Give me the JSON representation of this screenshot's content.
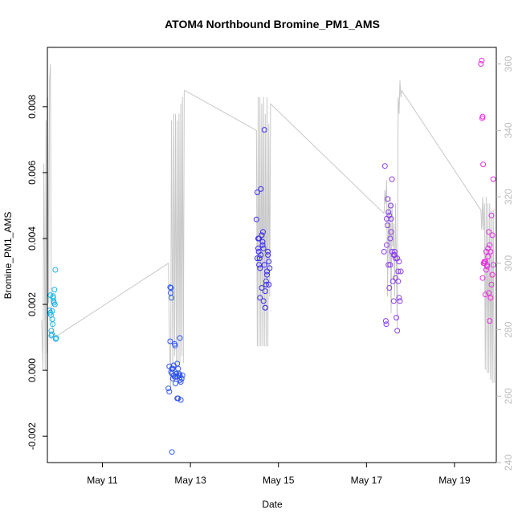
{
  "chart_data": {
    "type": "scatter",
    "title": "ATOM4 Northbound Bromine_PM1_AMS",
    "xlabel": "Date",
    "ylabel": "Bromine_PM1_AMS",
    "x_unit": "day of May",
    "xlim": [
      9.75,
      19.95
    ],
    "ylim": [
      -0.0028,
      0.0098
    ],
    "y2lim": [
      240,
      365
    ],
    "x_ticks": [
      11,
      13,
      15,
      17,
      19
    ],
    "x_tick_labels": [
      "May 11",
      "May 13",
      "May 15",
      "May 17",
      "May 19"
    ],
    "y_ticks": [
      -0.002,
      0.0,
      0.002,
      0.004,
      0.006,
      0.008
    ],
    "y_tick_labels": [
      "-0.002",
      "0.000",
      "0.002",
      "0.004",
      "0.006",
      "0.008"
    ],
    "y2_ticks": [
      240,
      260,
      280,
      300,
      320,
      340,
      360
    ],
    "y2_tick_labels": [
      "240",
      "260",
      "280",
      "300",
      "320",
      "340",
      "360"
    ],
    "colors": {
      "line": "#c8c8c8",
      "early": "#1ab4e8",
      "mid1": "#2f55f0",
      "mid2": "#3c2ef0",
      "late1": "#8a3ef0",
      "late2": "#e52ee0"
    },
    "points_series": [
      {
        "name": "group-may10",
        "color": "#1ab4e8",
        "x": [
          9.8,
          9.82,
          9.83,
          9.84,
          9.85,
          9.86,
          9.87,
          9.88,
          9.89,
          9.9,
          9.91,
          9.92,
          9.82,
          9.86,
          9.93,
          9.94,
          9.95,
          9.84,
          9.88
        ],
        "y": [
          0.00182,
          0.00228,
          0.00168,
          0.00105,
          0.0011,
          0.00155,
          0.0014,
          0.0022,
          0.0021,
          0.00205,
          0.00245,
          0.002,
          0.00175,
          0.0018,
          0.00305,
          0.00095,
          0.00098,
          0.0012,
          0.00225
        ]
      },
      {
        "name": "group-may12-13",
        "color": "#2f55f0",
        "x": [
          12.5,
          12.52,
          12.54,
          12.55,
          12.56,
          12.57,
          12.58,
          12.6,
          12.62,
          12.64,
          12.65,
          12.66,
          12.68,
          12.7,
          12.72,
          12.74,
          12.76,
          12.78,
          12.8,
          12.82,
          12.52,
          12.56,
          12.6,
          12.66,
          12.7,
          12.74,
          12.78,
          12.58,
          12.62,
          12.68,
          12.72,
          12.76,
          12.8,
          12.54,
          12.64,
          12.7,
          12.76,
          12.58
        ],
        "y": [
          -0.00055,
          -0.00065,
          0.00252,
          0.00235,
          0.0025,
          0.0022,
          -0.0001,
          5e-05,
          -0.00015,
          0.0008,
          0.00075,
          -0.0002,
          -0.0001,
          -0.0002,
          -0.00085,
          -0.0001,
          -0.00015,
          -0.00035,
          -0.00025,
          -0.00015,
          0.00012,
          -5e-05,
          -0.00025,
          -0.0004,
          0.0002,
          -0.00015,
          -0.0009,
          -0.00248,
          0.00015,
          -0.0001,
          5e-05,
          0.00098,
          -0.00025,
          0.00088,
          -0.0002,
          -0.00085,
          -0.0003,
          5e-05
        ]
      },
      {
        "name": "group-may14-15",
        "color": "#3c2ef0",
        "x": [
          14.5,
          14.52,
          14.54,
          14.55,
          14.56,
          14.57,
          14.58,
          14.6,
          14.62,
          14.64,
          14.65,
          14.66,
          14.68,
          14.7,
          14.72,
          14.74,
          14.76,
          14.78,
          14.8,
          14.54,
          14.58,
          14.62,
          14.66,
          14.7,
          14.74,
          14.78,
          14.56,
          14.6,
          14.64,
          14.68,
          14.72,
          14.76,
          14.52,
          14.62,
          14.7
        ],
        "y": [
          0.00458,
          0.0054,
          0.0037,
          0.0036,
          0.0032,
          0.0034,
          0.0031,
          0.0055,
          0.0041,
          0.0039,
          0.0042,
          0.0037,
          0.0073,
          0.0019,
          0.0026,
          0.003,
          0.0035,
          0.0033,
          0.0031,
          0.004,
          0.0022,
          0.0025,
          0.0021,
          0.0019,
          0.0029,
          0.0026,
          0.004,
          0.0035,
          0.0038,
          0.0032,
          0.0027,
          0.0036,
          0.0034,
          0.0041,
          0.0024
        ]
      },
      {
        "name": "group-may17",
        "color": "#8a3ef0",
        "x": [
          17.4,
          17.42,
          17.44,
          17.45,
          17.46,
          17.48,
          17.5,
          17.52,
          17.54,
          17.55,
          17.56,
          17.58,
          17.6,
          17.62,
          17.64,
          17.66,
          17.68,
          17.7,
          17.72,
          17.74,
          17.76,
          17.78,
          17.46,
          17.5,
          17.54,
          17.58,
          17.62,
          17.66,
          17.7,
          17.74,
          17.48,
          17.56,
          17.64,
          17.72,
          17.52
        ],
        "y": [
          0.0036,
          0.0062,
          0.0015,
          0.0014,
          0.0046,
          0.0052,
          0.0032,
          0.0047,
          0.0032,
          0.005,
          0.0042,
          0.0036,
          0.0027,
          0.0021,
          0.0035,
          0.0034,
          0.0016,
          0.0012,
          0.0027,
          0.0022,
          0.0021,
          0.003,
          0.0038,
          0.0048,
          0.004,
          0.0058,
          0.0035,
          0.0028,
          0.0034,
          0.0033,
          0.0044,
          0.0046,
          0.0036,
          0.003,
          0.0025
        ]
      },
      {
        "name": "group-may19-20",
        "color": "#e52ee0",
        "x": [
          19.6,
          19.62,
          19.63,
          19.64,
          19.65,
          19.66,
          19.68,
          19.7,
          19.72,
          19.74,
          19.76,
          19.78,
          19.8,
          19.82,
          19.84,
          19.86,
          19.88,
          19.64,
          19.68,
          19.72,
          19.76,
          19.8,
          19.84,
          19.88,
          19.7,
          19.74,
          19.78,
          19.82,
          19.86
        ],
        "y": [
          0.0093,
          0.0094,
          0.00765,
          0.0077,
          0.00625,
          0.00325,
          0.00325,
          0.0023,
          0.00305,
          0.00315,
          0.00345,
          0.00235,
          0.0015,
          0.0022,
          0.0026,
          0.0029,
          0.0032,
          0.0028,
          0.0033,
          0.0036,
          0.0037,
          0.0038,
          0.0047,
          0.0058,
          0.0033,
          0.0032,
          0.0042,
          0.0036,
          0.0041
        ]
      }
    ],
    "line_series": {
      "name": "right-axis-series",
      "color": "#c8c8c8",
      "x": [
        9.62,
        9.65,
        9.67,
        9.7,
        9.72,
        9.74,
        9.76,
        9.78,
        9.8,
        9.82,
        9.84,
        9.86,
        9.88,
        9.9,
        9.95,
        12.5,
        12.52,
        12.55,
        12.57,
        12.6,
        12.62,
        12.64,
        12.66,
        12.68,
        12.7,
        12.72,
        12.74,
        12.76,
        12.78,
        12.8,
        12.82,
        12.84,
        12.86,
        12.88,
        14.5,
        14.52,
        14.54,
        14.56,
        14.58,
        14.6,
        14.62,
        14.64,
        14.66,
        14.68,
        14.7,
        14.72,
        14.74,
        14.76,
        14.78,
        14.8,
        14.82,
        17.4,
        17.42,
        17.44,
        17.46,
        17.48,
        17.5,
        17.52,
        17.54,
        17.56,
        17.58,
        17.6,
        17.62,
        17.64,
        17.66,
        17.68,
        17.7,
        17.72,
        17.74,
        17.76,
        17.78,
        17.8,
        19.6,
        19.62,
        19.64,
        19.66,
        19.68,
        19.7,
        19.72,
        19.74,
        19.76,
        19.78,
        19.8,
        19.82,
        19.84,
        19.86,
        19.88,
        19.9
      ],
      "y": [
        283,
        268,
        330,
        268,
        343,
        273,
        350,
        288,
        355,
        360,
        285,
        282,
        280,
        279,
        278,
        300,
        280,
        262,
        343,
        268,
        345,
        272,
        345,
        270,
        343,
        268,
        345,
        270,
        348,
        272,
        350,
        270,
        352,
        352,
        340,
        275,
        350,
        275,
        350,
        275,
        348,
        275,
        350,
        275,
        345,
        275,
        350,
        275,
        342,
        290,
        348,
        315,
        322,
        318,
        325,
        290,
        318,
        300,
        320,
        285,
        318,
        305,
        312,
        290,
        318,
        298,
        280,
        350,
        345,
        355,
        350,
        352,
        316,
        310,
        320,
        310,
        318,
        268,
        320,
        267,
        318,
        267,
        318,
        265,
        316,
        264,
        316,
        264
      ]
    }
  }
}
